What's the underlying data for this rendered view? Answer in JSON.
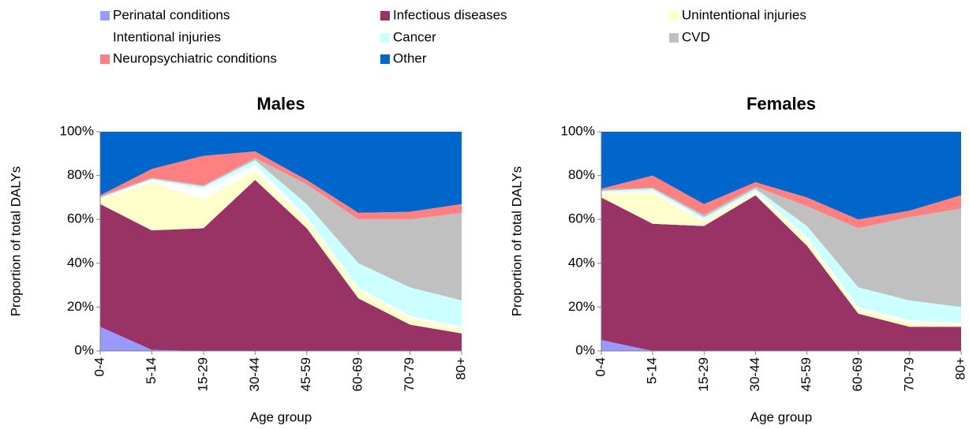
{
  "chart_data": [
    {
      "type": "stacked_area",
      "title": "Males",
      "x_label": "Age group",
      "y_label": "Proportion of total DALYs",
      "categories": [
        "0-4",
        "5-14",
        "15-29",
        "30-44",
        "45-59",
        "60-69",
        "70-79",
        "80+"
      ],
      "ylim": [
        0,
        100
      ],
      "yticks": [
        {
          "value": 0,
          "label": "0%"
        },
        {
          "value": 20,
          "label": "20%"
        },
        {
          "value": 40,
          "label": "40%"
        },
        {
          "value": 60,
          "label": "60%"
        },
        {
          "value": 80,
          "label": "80%"
        },
        {
          "value": 100,
          "label": "100%"
        }
      ],
      "series": [
        {
          "name": "Perinatal conditions",
          "color": "#9999ff",
          "values": [
            11,
            0.5,
            0,
            0,
            0,
            0,
            0,
            0
          ]
        },
        {
          "name": "Infectious diseases",
          "color": "#993366",
          "values": [
            56,
            54.5,
            56,
            78,
            56,
            24,
            12,
            8
          ]
        },
        {
          "name": "Unintentional injuries",
          "color": "#ffffcc",
          "values": [
            2,
            22,
            13,
            4,
            4,
            4,
            3,
            2
          ]
        },
        {
          "name": "Intentional injuries",
          "color": "#ffffff",
          "values": [
            0.5,
            1,
            5,
            3,
            1,
            1,
            1,
            1
          ]
        },
        {
          "name": "Cancer",
          "color": "#ccffff",
          "values": [
            0.5,
            0.5,
            1,
            2,
            6,
            11,
            13,
            12
          ]
        },
        {
          "name": "CVD",
          "color": "#c0c0c0",
          "values": [
            0.5,
            0.5,
            0.5,
            1,
            9,
            20,
            31,
            40
          ]
        },
        {
          "name": "Neuropsychiatric conditions",
          "color": "#ff8080",
          "values": [
            0.5,
            4,
            13.5,
            3,
            2,
            3,
            3.5,
            4
          ]
        },
        {
          "name": "Other",
          "color": "#0066cc",
          "values": [
            29,
            17,
            11,
            9,
            22,
            37,
            36.5,
            33
          ]
        }
      ]
    },
    {
      "type": "stacked_area",
      "title": "Females",
      "x_label": "Age group",
      "y_label": "Proportion of total DALYs",
      "categories": [
        "0-4",
        "5-14",
        "15-29",
        "30-44",
        "45-59",
        "60-69",
        "70-79",
        "80+"
      ],
      "ylim": [
        0,
        100
      ],
      "yticks": [
        {
          "value": 0,
          "label": "0%"
        },
        {
          "value": 20,
          "label": "20%"
        },
        {
          "value": 40,
          "label": "40%"
        },
        {
          "value": 60,
          "label": "60%"
        },
        {
          "value": 80,
          "label": "80%"
        },
        {
          "value": 100,
          "label": "100%"
        }
      ],
      "series": [
        {
          "name": "Perinatal conditions",
          "color": "#9999ff",
          "values": [
            5,
            0,
            0,
            0,
            0,
            0,
            0,
            0
          ]
        },
        {
          "name": "Infectious diseases",
          "color": "#993366",
          "values": [
            65,
            58,
            57,
            71,
            48,
            17,
            11,
            11
          ]
        },
        {
          "name": "Unintentional injuries",
          "color": "#ffffcc",
          "values": [
            2,
            14,
            2,
            1,
            3,
            2,
            2,
            1
          ]
        },
        {
          "name": "Intentional injuries",
          "color": "#ffffff",
          "values": [
            0.5,
            1,
            1,
            1,
            1,
            1,
            1,
            1
          ]
        },
        {
          "name": "Cancer",
          "color": "#ccffff",
          "values": [
            0.5,
            1,
            1,
            1,
            5,
            9,
            9,
            7
          ]
        },
        {
          "name": "CVD",
          "color": "#c0c0c0",
          "values": [
            0.5,
            0.5,
            1,
            1,
            9,
            27,
            38,
            45
          ]
        },
        {
          "name": "Neuropsychiatric conditions",
          "color": "#ff8080",
          "values": [
            0.5,
            5.5,
            5,
            2,
            4,
            4,
            3,
            6
          ]
        },
        {
          "name": "Other",
          "color": "#0066cc",
          "values": [
            26,
            20,
            33,
            23,
            30,
            40,
            36,
            29
          ]
        }
      ]
    }
  ]
}
